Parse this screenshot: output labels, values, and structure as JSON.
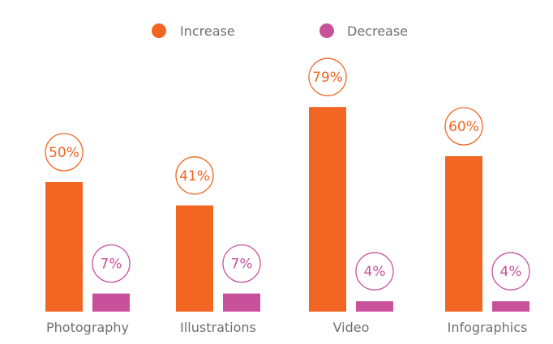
{
  "chart_data": {
    "type": "bar",
    "categories": [
      "Photography",
      "Illustrations",
      "Video",
      "Infographics"
    ],
    "series": [
      {
        "name": "Increase",
        "values": [
          50,
          41,
          79,
          60
        ],
        "color": "#f26522"
      },
      {
        "name": "Decrease",
        "values": [
          7,
          7,
          4,
          4
        ],
        "color": "#c9519c"
      }
    ],
    "value_format": "percent",
    "legend": "top-center",
    "grid": false,
    "ylim": [
      0,
      100
    ]
  }
}
